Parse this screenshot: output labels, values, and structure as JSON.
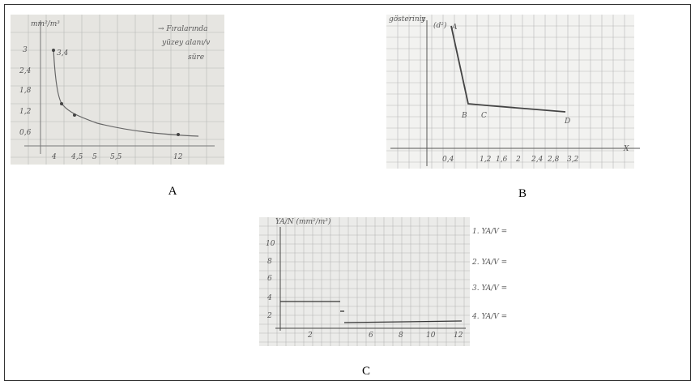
{
  "panels": [
    {
      "label": "A",
      "handwriting": [
        "mm²/m³",
        "3,4",
        "3",
        "2,4",
        "1,8",
        "1,2",
        "0,6",
        "4",
        "4,5",
        "5",
        "5,5",
        "12",
        "→ Fıralarında",
        "yüzey alanı/v",
        "süre"
      ]
    },
    {
      "label": "B",
      "handwriting": [
        "gösteriniz",
        "y",
        "(d²)",
        "A",
        "B",
        "C",
        "D",
        "0,4",
        "1,2",
        "1,6",
        "2",
        "2,4",
        "2,8",
        "3,2",
        "X"
      ]
    },
    {
      "label": "C",
      "handwriting": [
        "YA/N (mm²/m³)",
        "10",
        "8",
        "6",
        "4",
        "2",
        "2",
        "6",
        "8",
        "10",
        "12",
        "1. YA/V =",
        "2. YA/V =",
        "3. YA/V =",
        "4. YA/V ="
      ]
    }
  ]
}
